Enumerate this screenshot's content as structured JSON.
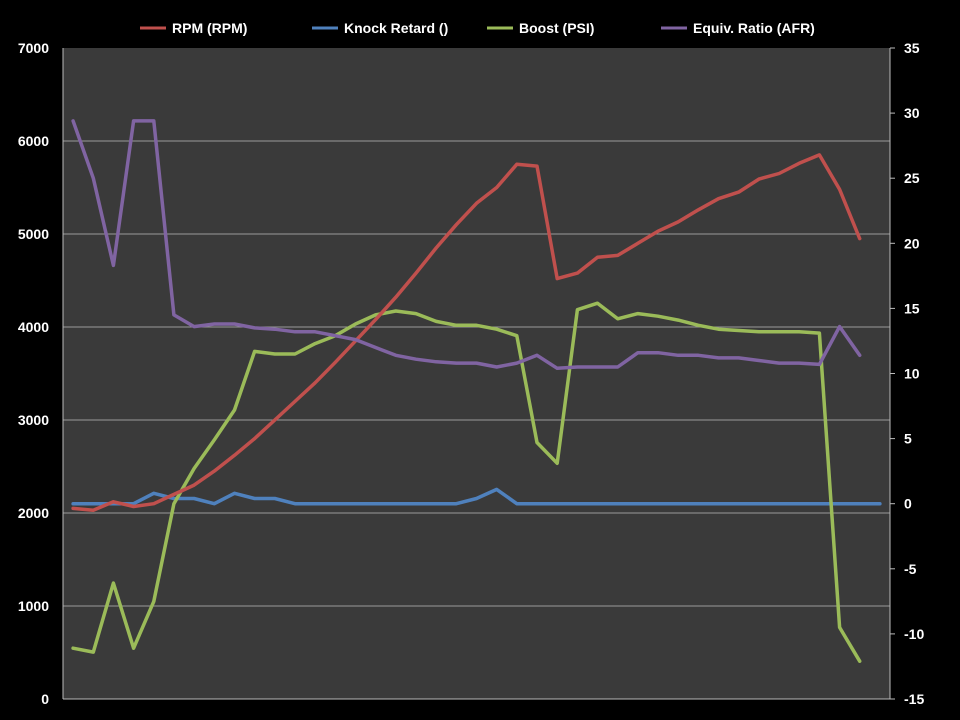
{
  "chart_data": {
    "type": "line",
    "title": "",
    "xlabel": "",
    "ylabel": "",
    "y2label": "",
    "x_count": 41,
    "ylim": [
      0,
      7000
    ],
    "y2lim": [
      -15,
      35
    ],
    "y_ticks": [
      "0",
      "1000",
      "2000",
      "3000",
      "4000",
      "5000",
      "6000",
      "7000"
    ],
    "y2_ticks": [
      "-15",
      "-10",
      "-5",
      "0",
      "5",
      "10",
      "15",
      "20",
      "25",
      "30",
      "35"
    ],
    "grid": true,
    "legend_position": "top",
    "colors": {
      "background": "#000000",
      "plot_area": "#3a3a3a",
      "gridline": "#9a9a9a",
      "axis_text": "#ffffff"
    },
    "series": [
      {
        "name": "RPM (RPM)",
        "axis": "left",
        "color": "#c0504d",
        "values": [
          2050,
          2030,
          2120,
          2070,
          2100,
          2200,
          2300,
          2450,
          2620,
          2800,
          3000,
          3200,
          3400,
          3620,
          3850,
          4080,
          4320,
          4580,
          4850,
          5100,
          5330,
          5500,
          5750,
          5730,
          4520,
          4580,
          4750,
          4770,
          4900,
          5030,
          5130,
          5260,
          5380,
          5450,
          5590,
          5650,
          5760,
          5850,
          5480,
          4950,
          null
        ]
      },
      {
        "name": "Knock Retard ()",
        "axis": "right",
        "color": "#4f81bd",
        "values": [
          0,
          0,
          0,
          0,
          0.8,
          0.4,
          0.4,
          0,
          0.8,
          0.4,
          0.4,
          0,
          0,
          0,
          0,
          0,
          0,
          0,
          0,
          0,
          0.4,
          1.1,
          0,
          0,
          0,
          0,
          0,
          0,
          0,
          0,
          0,
          0,
          0,
          0,
          0,
          0,
          0,
          0,
          0,
          0,
          0
        ]
      },
      {
        "name": "Boost (PSI)",
        "axis": "right",
        "color": "#9bbb59",
        "values": [
          -11.1,
          -11.4,
          -6.1,
          -11.1,
          -7.5,
          0,
          2.7,
          4.9,
          7.2,
          11.7,
          11.5,
          11.5,
          12.3,
          12.9,
          13.8,
          14.5,
          14.8,
          14.6,
          14.0,
          13.7,
          13.7,
          13.4,
          12.9,
          4.7,
          3.1,
          14.9,
          15.4,
          14.2,
          14.6,
          14.4,
          14.1,
          13.7,
          13.4,
          13.3,
          13.2,
          13.2,
          13.2,
          13.1,
          -9.5,
          -12.1,
          null
        ]
      },
      {
        "name": "Equiv. Ratio (AFR)",
        "axis": "right",
        "color": "#8064a2",
        "values": [
          29.4,
          25.0,
          18.3,
          29.4,
          29.4,
          14.5,
          13.6,
          13.8,
          13.8,
          13.5,
          13.4,
          13.2,
          13.2,
          12.9,
          12.6,
          12.0,
          11.4,
          11.1,
          10.9,
          10.8,
          10.8,
          10.5,
          10.8,
          11.4,
          10.4,
          10.5,
          10.5,
          10.5,
          11.6,
          11.6,
          11.4,
          11.4,
          11.2,
          11.2,
          11.0,
          10.8,
          10.8,
          10.7,
          13.6,
          11.4,
          null
        ]
      }
    ]
  }
}
